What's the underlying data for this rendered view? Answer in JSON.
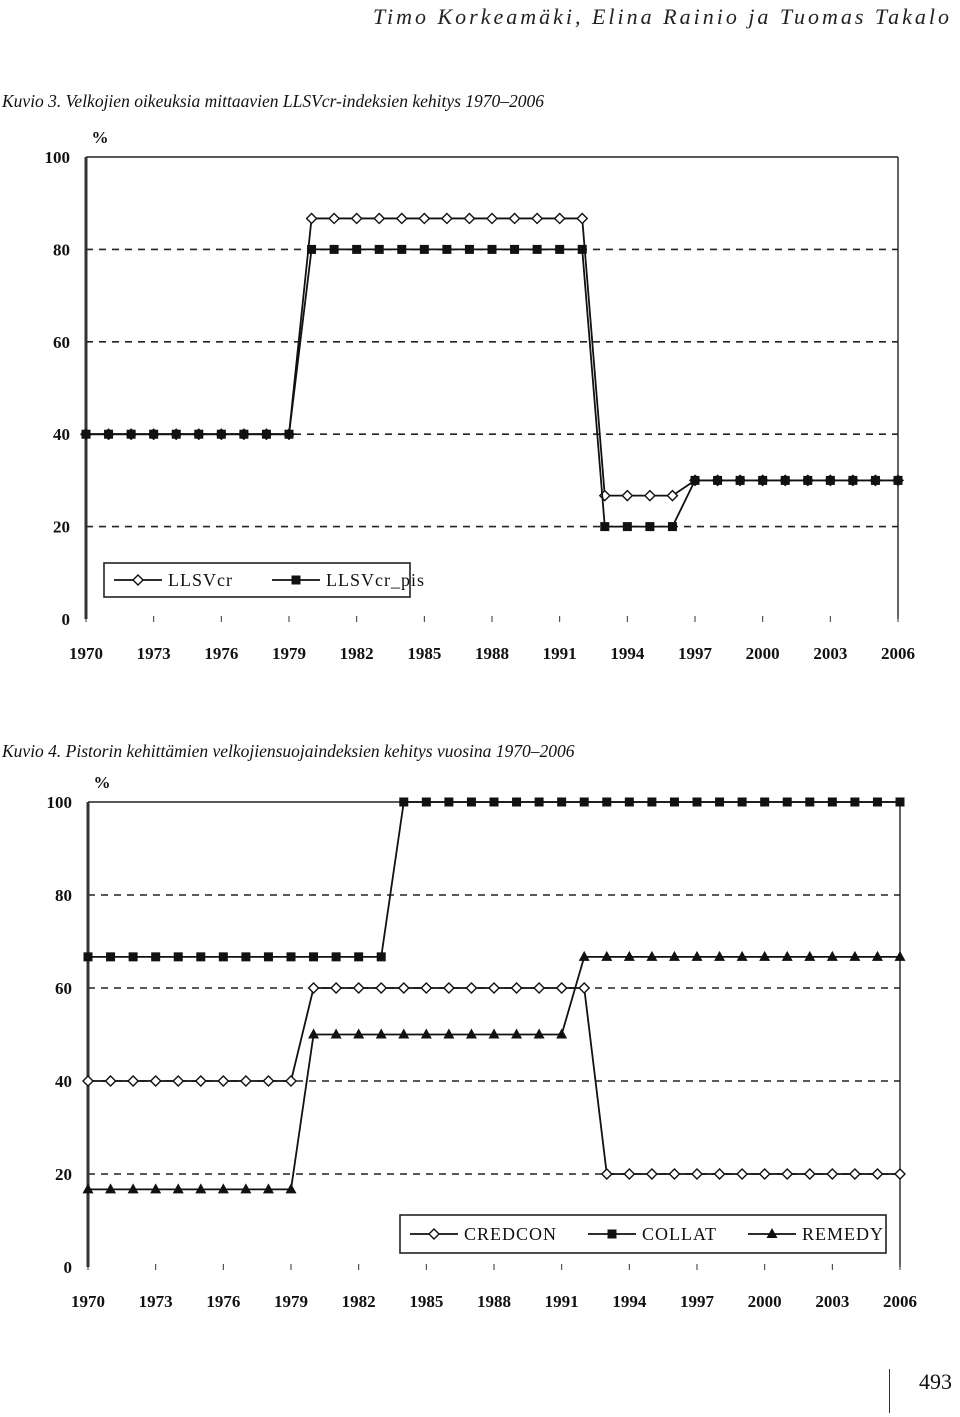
{
  "header": {
    "running_title": "Timo Korkeamäki, Elina Rainio ja Tuomas Takalo"
  },
  "page_number": "493",
  "chart_data": [
    {
      "type": "line",
      "caption": "Kuvio 3. Velkojien oikeuksia mittaavien LLSVcr-indeksien kehitys 1970–2006",
      "ylabel": "%",
      "xlabel": "",
      "ylim": [
        0,
        100
      ],
      "yticks": [
        0,
        20,
        40,
        60,
        80,
        100
      ],
      "xlim": [
        1970,
        2006
      ],
      "xticks": [
        1970,
        1973,
        1976,
        1979,
        1982,
        1985,
        1988,
        1991,
        1994,
        1997,
        2000,
        2003,
        2006
      ],
      "grid": "dashed horizontal at 20, 40, 80; solid at 100",
      "legend_placement": "lower-left",
      "series": [
        {
          "name": "LLSVcr",
          "marker": "diamond-open",
          "x": [
            1970,
            1971,
            1972,
            1973,
            1974,
            1975,
            1976,
            1977,
            1978,
            1979,
            1980,
            1981,
            1982,
            1983,
            1984,
            1985,
            1986,
            1987,
            1988,
            1989,
            1990,
            1991,
            1992,
            1993,
            1994,
            1995,
            1996,
            1997,
            1998,
            1999,
            2000,
            2001,
            2002,
            2003,
            2004,
            2005,
            2006
          ],
          "values": [
            40,
            40,
            40,
            40,
            40,
            40,
            40,
            40,
            40,
            40,
            86.7,
            86.7,
            86.7,
            86.7,
            86.7,
            86.7,
            86.7,
            86.7,
            86.7,
            86.7,
            86.7,
            86.7,
            86.7,
            26.7,
            26.7,
            26.7,
            26.7,
            30,
            30,
            30,
            30,
            30,
            30,
            30,
            30,
            30,
            30
          ]
        },
        {
          "name": "LLSVcr_pis",
          "marker": "square-filled",
          "x": [
            1970,
            1971,
            1972,
            1973,
            1974,
            1975,
            1976,
            1977,
            1978,
            1979,
            1980,
            1981,
            1982,
            1983,
            1984,
            1985,
            1986,
            1987,
            1988,
            1989,
            1990,
            1991,
            1992,
            1993,
            1994,
            1995,
            1996,
            1997,
            1998,
            1999,
            2000,
            2001,
            2002,
            2003,
            2004,
            2005,
            2006
          ],
          "values": [
            40,
            40,
            40,
            40,
            40,
            40,
            40,
            40,
            40,
            40,
            80,
            80,
            80,
            80,
            80,
            80,
            80,
            80,
            80,
            80,
            80,
            80,
            80,
            20,
            20,
            20,
            20,
            30,
            30,
            30,
            30,
            30,
            30,
            30,
            30,
            30,
            30
          ]
        }
      ]
    },
    {
      "type": "line",
      "caption": "Kuvio 4. Pistorin kehittämien velkojiensuojaindeksien kehitys vuosina 1970–2006",
      "ylabel": "%",
      "xlabel": "",
      "ylim": [
        0,
        100
      ],
      "yticks": [
        0,
        20,
        40,
        60,
        80,
        100
      ],
      "xlim": [
        1970,
        2006
      ],
      "xticks": [
        1970,
        1973,
        1976,
        1979,
        1982,
        1985,
        1988,
        1991,
        1994,
        1997,
        2000,
        2003,
        2006
      ],
      "grid": "dashed horizontal at 20, 40, 60, 80; solid at 100",
      "legend_placement": "lower-right",
      "series": [
        {
          "name": "CREDCON",
          "marker": "diamond-open",
          "x": [
            1970,
            1971,
            1972,
            1973,
            1974,
            1975,
            1976,
            1977,
            1978,
            1979,
            1980,
            1981,
            1982,
            1983,
            1984,
            1985,
            1986,
            1987,
            1988,
            1989,
            1990,
            1991,
            1992,
            1993,
            1994,
            1995,
            1996,
            1997,
            1998,
            1999,
            2000,
            2001,
            2002,
            2003,
            2004,
            2005,
            2006
          ],
          "values": [
            40,
            40,
            40,
            40,
            40,
            40,
            40,
            40,
            40,
            40,
            60,
            60,
            60,
            60,
            60,
            60,
            60,
            60,
            60,
            60,
            60,
            60,
            60,
            20,
            20,
            20,
            20,
            20,
            20,
            20,
            20,
            20,
            20,
            20,
            20,
            20,
            20
          ]
        },
        {
          "name": "COLLAT",
          "marker": "square-filled",
          "x": [
            1970,
            1971,
            1972,
            1973,
            1974,
            1975,
            1976,
            1977,
            1978,
            1979,
            1980,
            1981,
            1982,
            1983,
            1984,
            1985,
            1986,
            1987,
            1988,
            1989,
            1990,
            1991,
            1992,
            1993,
            1994,
            1995,
            1996,
            1997,
            1998,
            1999,
            2000,
            2001,
            2002,
            2003,
            2004,
            2005,
            2006
          ],
          "values": [
            66.7,
            66.7,
            66.7,
            66.7,
            66.7,
            66.7,
            66.7,
            66.7,
            66.7,
            66.7,
            66.7,
            66.7,
            66.7,
            66.7,
            100,
            100,
            100,
            100,
            100,
            100,
            100,
            100,
            100,
            100,
            100,
            100,
            100,
            100,
            100,
            100,
            100,
            100,
            100,
            100,
            100,
            100,
            100
          ]
        },
        {
          "name": "REMEDY",
          "marker": "triangle-filled",
          "x": [
            1970,
            1971,
            1972,
            1973,
            1974,
            1975,
            1976,
            1977,
            1978,
            1979,
            1980,
            1981,
            1982,
            1983,
            1984,
            1985,
            1986,
            1987,
            1988,
            1989,
            1990,
            1991,
            1992,
            1993,
            1994,
            1995,
            1996,
            1997,
            1998,
            1999,
            2000,
            2001,
            2002,
            2003,
            2004,
            2005,
            2006
          ],
          "values": [
            16.7,
            16.7,
            16.7,
            16.7,
            16.7,
            16.7,
            16.7,
            16.7,
            16.7,
            16.7,
            50,
            50,
            50,
            50,
            50,
            50,
            50,
            50,
            50,
            50,
            50,
            50,
            66.7,
            66.7,
            66.7,
            66.7,
            66.7,
            66.7,
            66.7,
            66.7,
            66.7,
            66.7,
            66.7,
            66.7,
            66.7,
            66.7,
            66.7
          ]
        }
      ]
    }
  ]
}
